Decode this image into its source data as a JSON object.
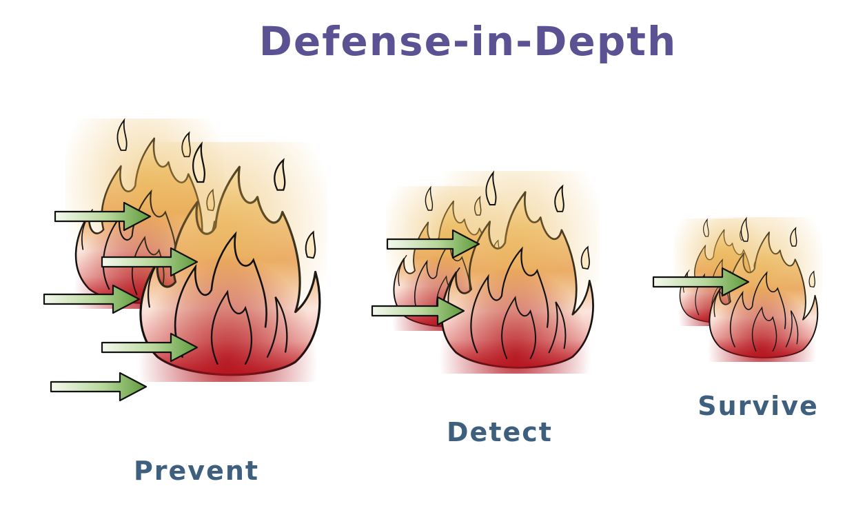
{
  "title": "Defense-in-Depth",
  "colors": {
    "title": "#5b5293",
    "label": "#3f5f7f",
    "flame_dark": "#c0202a",
    "flame_mid": "#ec9a66",
    "flame_light": "#f7e3a8",
    "arrow_dark": "#5f9a3c",
    "arrow_light": "#f4f8ee",
    "outline": "#111111"
  },
  "stages": [
    {
      "label": "Prevent",
      "arrow_count": 5,
      "icon": "fire-icon"
    },
    {
      "label": "Detect",
      "arrow_count": 2,
      "icon": "fire-icon"
    },
    {
      "label": "Survive",
      "arrow_count": 1,
      "icon": "fire-icon"
    }
  ]
}
